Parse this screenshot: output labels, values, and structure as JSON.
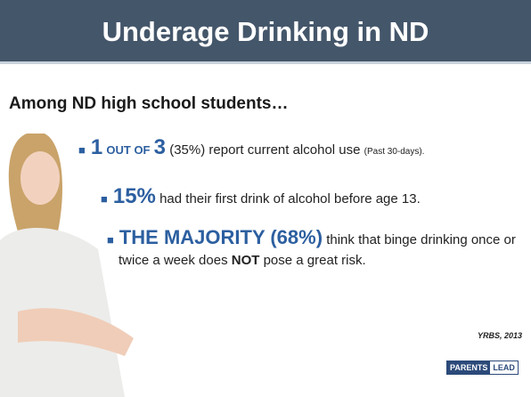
{
  "header": {
    "title": "Underage Drinking in ND"
  },
  "intro": "Among ND high school students…",
  "bullets": [
    {
      "big1": "1",
      "small": "OUT OF",
      "big2": "3",
      "text": "(35%) report current alcohol use",
      "note": "(Past 30-days)."
    },
    {
      "big": "15%",
      "text": "had their first drink of alcohol before age 13."
    },
    {
      "big": "THE MAJORITY (68%)",
      "text1": "think that binge drinking once or twice a week does",
      "bold": "NOT",
      "text2": "pose a great risk."
    }
  ],
  "source": "YRBS, 2013",
  "logo": {
    "part1": "PARENTS",
    "part2": "LEAD"
  }
}
